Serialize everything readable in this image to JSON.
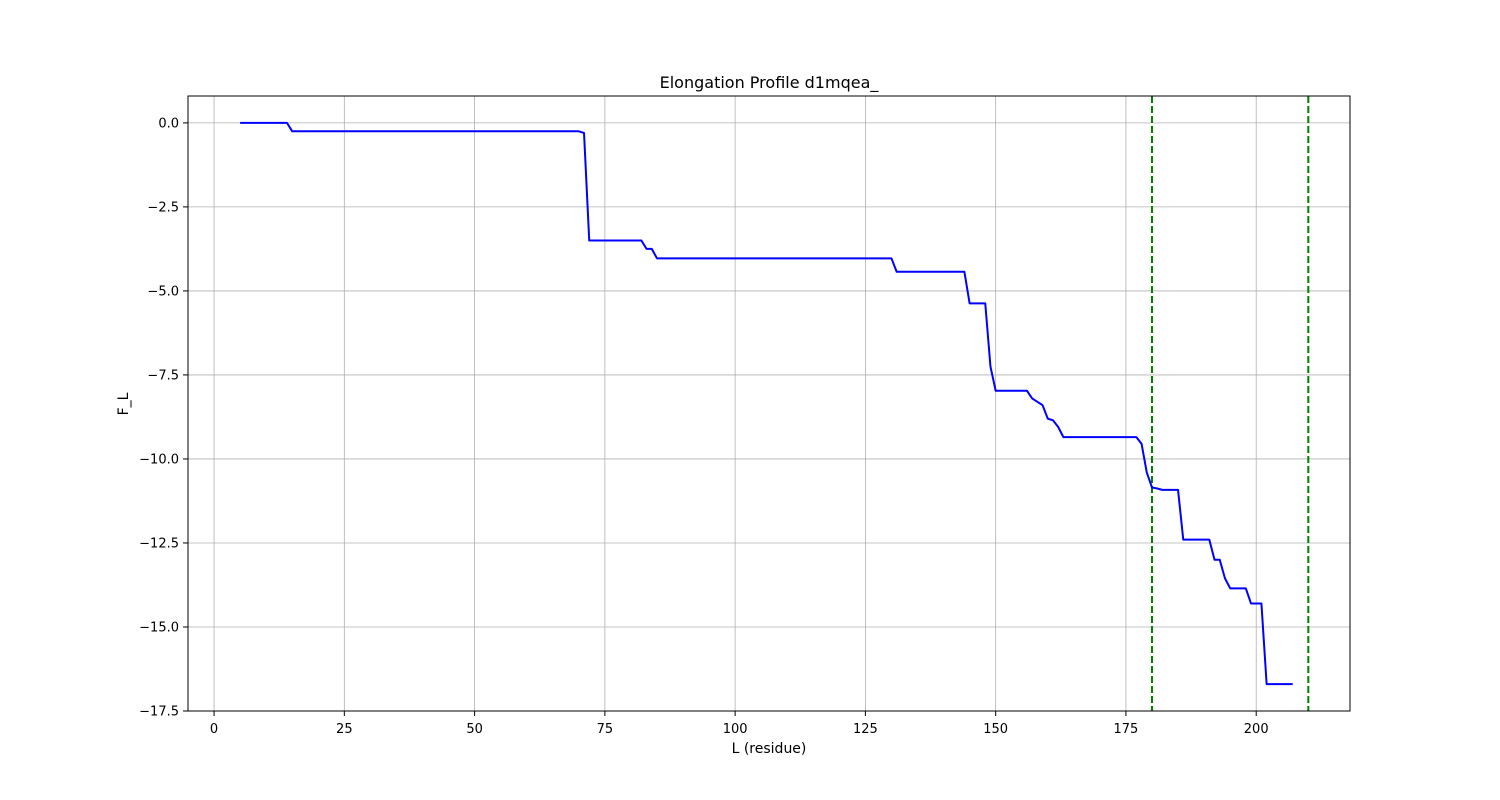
{
  "chart_data": {
    "type": "line",
    "title": "Elongation Profile d1mqea_",
    "xlabel": "L (residue)",
    "ylabel": "F_L",
    "xlim": [
      -5,
      218
    ],
    "ylim": [
      -17.5,
      0.8
    ],
    "x_ticks": [
      0,
      25,
      50,
      75,
      100,
      125,
      150,
      175,
      200
    ],
    "x_tick_labels": [
      "0",
      "25",
      "50",
      "75",
      "100",
      "125",
      "150",
      "175",
      "200"
    ],
    "y_ticks": [
      0,
      -2.5,
      -5,
      -7.5,
      -10,
      -12.5,
      -15,
      -17.5
    ],
    "y_tick_labels": [
      "0.0",
      "−2.5",
      "−5.0",
      "−7.5",
      "−10.0",
      "−12.5",
      "−15.0",
      "−17.5"
    ],
    "grid": true,
    "series": [
      {
        "color": "#0000ff",
        "points": [
          [
            5,
            0.0
          ],
          [
            14,
            0.0
          ],
          [
            15,
            -0.25
          ],
          [
            70,
            -0.25
          ],
          [
            71,
            -0.3
          ],
          [
            72,
            -3.5
          ],
          [
            82,
            -3.5
          ],
          [
            83,
            -3.75
          ],
          [
            84,
            -3.75
          ],
          [
            85,
            -4.03
          ],
          [
            130,
            -4.03
          ],
          [
            131,
            -4.43
          ],
          [
            144,
            -4.43
          ],
          [
            145,
            -5.37
          ],
          [
            148,
            -5.37
          ],
          [
            149,
            -7.25
          ],
          [
            150,
            -7.97
          ],
          [
            156,
            -7.97
          ],
          [
            157,
            -8.2
          ],
          [
            159,
            -8.4
          ],
          [
            160,
            -8.8
          ],
          [
            161,
            -8.85
          ],
          [
            162,
            -9.05
          ],
          [
            163,
            -9.35
          ],
          [
            177,
            -9.35
          ],
          [
            178,
            -9.55
          ],
          [
            179,
            -10.4
          ],
          [
            180,
            -10.85
          ],
          [
            181,
            -10.88
          ],
          [
            182,
            -10.92
          ],
          [
            185,
            -10.92
          ],
          [
            186,
            -12.4
          ],
          [
            191,
            -12.4
          ],
          [
            192,
            -13.0
          ],
          [
            193,
            -13.0
          ],
          [
            194,
            -13.55
          ],
          [
            195,
            -13.85
          ],
          [
            198,
            -13.85
          ],
          [
            199,
            -14.3
          ],
          [
            201,
            -14.3
          ],
          [
            202,
            -16.7
          ],
          [
            207,
            -16.7
          ]
        ]
      }
    ],
    "vlines": [
      {
        "x": 180,
        "color": "#008000",
        "style": "dashed"
      },
      {
        "x": 210,
        "color": "#008000",
        "style": "dashed"
      }
    ]
  }
}
